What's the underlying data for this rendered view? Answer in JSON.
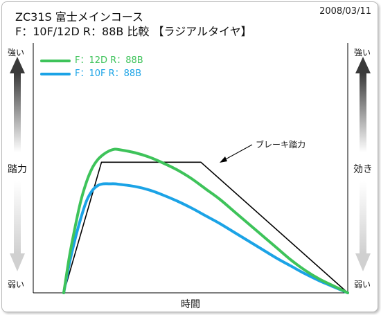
{
  "header": {
    "title_line1": "ZC31S 富士メインコース",
    "title_line2": "F：10F/12D R：88B 比較 【ラジアルタイヤ】",
    "date": "2008/03/11"
  },
  "left_axis": {
    "top": "強い",
    "middle": "踏力",
    "bottom": "弱い"
  },
  "right_axis": {
    "top": "強い",
    "middle": "効き",
    "bottom": "弱い"
  },
  "chart_data": {
    "type": "line",
    "xlabel": "時間",
    "ylabel": "踏力",
    "y2label": "効き",
    "grid": false,
    "legend_placement": "top-left",
    "x_range": [
      0,
      100
    ],
    "y_range": [
      0,
      100
    ],
    "series": [
      {
        "name": "F：12D R：88B",
        "color": "#3ec35a",
        "points": [
          [
            0,
            0
          ],
          [
            2,
            21
          ],
          [
            4,
            38
          ],
          [
            6,
            53
          ],
          [
            8,
            64
          ],
          [
            10,
            72
          ],
          [
            12,
            77
          ],
          [
            14,
            80
          ],
          [
            16,
            82
          ],
          [
            18,
            83
          ],
          [
            20,
            82.6
          ],
          [
            25,
            81
          ],
          [
            30,
            78.5
          ],
          [
            35,
            75
          ],
          [
            40,
            71
          ],
          [
            45,
            66
          ],
          [
            50,
            60
          ],
          [
            55,
            54
          ],
          [
            60,
            47
          ],
          [
            65,
            40
          ],
          [
            70,
            33
          ],
          [
            75,
            26
          ],
          [
            80,
            19
          ],
          [
            85,
            13
          ],
          [
            90,
            8
          ],
          [
            95,
            4
          ],
          [
            100,
            0
          ]
        ]
      },
      {
        "name": "F：10F R：88B",
        "color": "#1ba3e6",
        "points": [
          [
            0,
            0
          ],
          [
            2,
            17
          ],
          [
            4,
            31
          ],
          [
            6,
            43
          ],
          [
            8,
            53
          ],
          [
            10,
            59
          ],
          [
            12,
            62
          ],
          [
            14,
            63
          ],
          [
            16,
            63
          ],
          [
            18,
            63
          ],
          [
            20,
            62.6
          ],
          [
            25,
            61.5
          ],
          [
            30,
            59.5
          ],
          [
            35,
            56.5
          ],
          [
            40,
            53
          ],
          [
            45,
            49
          ],
          [
            50,
            44.5
          ],
          [
            55,
            40
          ],
          [
            60,
            35
          ],
          [
            65,
            30
          ],
          [
            70,
            25
          ],
          [
            75,
            20
          ],
          [
            80,
            15.5
          ],
          [
            85,
            11
          ],
          [
            90,
            7
          ],
          [
            95,
            3.5
          ],
          [
            100,
            0
          ]
        ]
      },
      {
        "name": "ブレーキ踏力",
        "color": "#000000",
        "points": [
          [
            0,
            0
          ],
          [
            13.3,
            75.5
          ],
          [
            48.3,
            75.5
          ],
          [
            100,
            0
          ]
        ]
      }
    ],
    "annotations": [
      {
        "text": "ブレーキ踏力",
        "target_series": "ブレーキ踏力"
      }
    ]
  },
  "colors": {
    "green": "#3ec35a",
    "blue": "#1ba3e6",
    "arrow_dark": "#444444",
    "arrow_light": "#d4d4d4"
  },
  "icons": [
    "arrow-up-gradient-icon",
    "arrow-down-gradient-icon"
  ]
}
